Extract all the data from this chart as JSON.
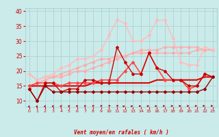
{
  "background_color": "#cbeaea",
  "grid_color": "#aad4d4",
  "xlabel": "Vent moyen/en rafales ( km/h )",
  "xlim": [
    -0.5,
    23.5
  ],
  "ylim": [
    8,
    41
  ],
  "yticks": [
    10,
    15,
    20,
    25,
    30,
    35,
    40
  ],
  "xticks": [
    0,
    1,
    2,
    3,
    4,
    5,
    6,
    7,
    8,
    9,
    10,
    11,
    12,
    13,
    14,
    15,
    16,
    17,
    18,
    19,
    20,
    21,
    22,
    23
  ],
  "series": [
    {
      "x": [
        0,
        1,
        2,
        3,
        4,
        5,
        6,
        7,
        8,
        9,
        10,
        11,
        12,
        13,
        14,
        15,
        16,
        17,
        18,
        19,
        20,
        21,
        22,
        23
      ],
      "y": [
        19,
        17,
        18,
        18,
        18,
        19,
        20,
        20,
        21,
        22,
        23,
        24,
        25,
        26,
        27,
        27,
        27,
        28,
        28,
        28,
        28,
        28,
        27,
        27
      ],
      "color": "#ffaaaa",
      "lw": 1.0,
      "marker": "D",
      "ms": 2.0,
      "zorder": 2
    },
    {
      "x": [
        0,
        1,
        2,
        3,
        4,
        5,
        6,
        7,
        8,
        9,
        10,
        11,
        12,
        13,
        14,
        15,
        16,
        17,
        18,
        19,
        20,
        21,
        22,
        23
      ],
      "y": [
        14,
        16,
        17,
        18,
        19,
        20,
        21,
        22,
        23,
        24,
        24,
        25,
        25,
        26,
        26,
        26,
        26,
        26,
        26,
        26,
        26,
        27,
        27,
        27
      ],
      "color": "#ffaaaa",
      "lw": 1.0,
      "marker": "D",
      "ms": 2.0,
      "zorder": 2
    },
    {
      "x": [
        0,
        1,
        2,
        3,
        4,
        5,
        6,
        7,
        8,
        9,
        10,
        11,
        12,
        13,
        14,
        15,
        16,
        17,
        18,
        19,
        20,
        21,
        22,
        23
      ],
      "y": [
        19,
        17,
        18,
        19,
        21,
        22,
        24,
        24,
        25,
        27,
        32,
        37,
        36,
        30,
        30,
        32,
        37,
        37,
        31,
        23,
        22,
        22,
        28,
        27
      ],
      "color": "#ffbbbb",
      "lw": 1.0,
      "marker": "D",
      "ms": 2.0,
      "zorder": 2
    },
    {
      "x": [
        0,
        1,
        2,
        3,
        4,
        5,
        6,
        7,
        8,
        9,
        10,
        11,
        12,
        13,
        14,
        15,
        16,
        17,
        18,
        19,
        20,
        21,
        22,
        23
      ],
      "y": [
        15,
        16,
        16,
        16,
        15,
        16,
        16,
        16,
        16,
        17,
        17,
        17,
        20,
        23,
        19,
        26,
        21,
        17,
        17,
        17,
        14,
        15,
        19,
        18
      ],
      "color": "#ff4444",
      "lw": 1.2,
      "marker": "D",
      "ms": 2.0,
      "zorder": 3
    },
    {
      "x": [
        0,
        1,
        2,
        3,
        4,
        5,
        6,
        7,
        8,
        9,
        10,
        11,
        12,
        13,
        14,
        15,
        16,
        17,
        18,
        19,
        20,
        21,
        22,
        23
      ],
      "y": [
        15,
        15,
        15,
        15,
        15,
        15,
        15,
        15,
        16,
        16,
        16,
        16,
        16,
        16,
        16,
        16,
        17,
        17,
        17,
        17,
        17,
        17,
        18,
        18
      ],
      "color": "#dd0000",
      "lw": 1.5,
      "marker": null,
      "ms": 0,
      "zorder": 2
    },
    {
      "x": [
        0,
        1,
        2,
        3,
        4,
        5,
        6,
        7,
        8,
        9,
        10,
        11,
        12,
        13,
        14,
        15,
        16,
        17,
        18,
        19,
        20,
        21,
        22,
        23
      ],
      "y": [
        14,
        10,
        16,
        16,
        13,
        14,
        14,
        17,
        17,
        16,
        16,
        28,
        23,
        19,
        19,
        26,
        21,
        20,
        17,
        17,
        15,
        15,
        19,
        18
      ],
      "color": "#cc0000",
      "lw": 1.0,
      "marker": "D",
      "ms": 2.0,
      "zorder": 3
    },
    {
      "x": [
        0,
        1,
        2,
        3,
        4,
        5,
        6,
        7,
        8,
        9,
        10,
        11,
        12,
        13,
        14,
        15,
        16,
        17,
        18,
        19,
        20,
        21,
        22,
        23
      ],
      "y": [
        14,
        10,
        15,
        13,
        13,
        13,
        13,
        13,
        13,
        13,
        13,
        13,
        13,
        13,
        13,
        13,
        13,
        13,
        13,
        13,
        13,
        13,
        14,
        18
      ],
      "color": "#990000",
      "lw": 1.0,
      "marker": "D",
      "ms": 2.0,
      "zorder": 3
    }
  ],
  "arrow_color": "#cc0000",
  "tick_color": "#cc0000",
  "label_color": "#cc0000"
}
